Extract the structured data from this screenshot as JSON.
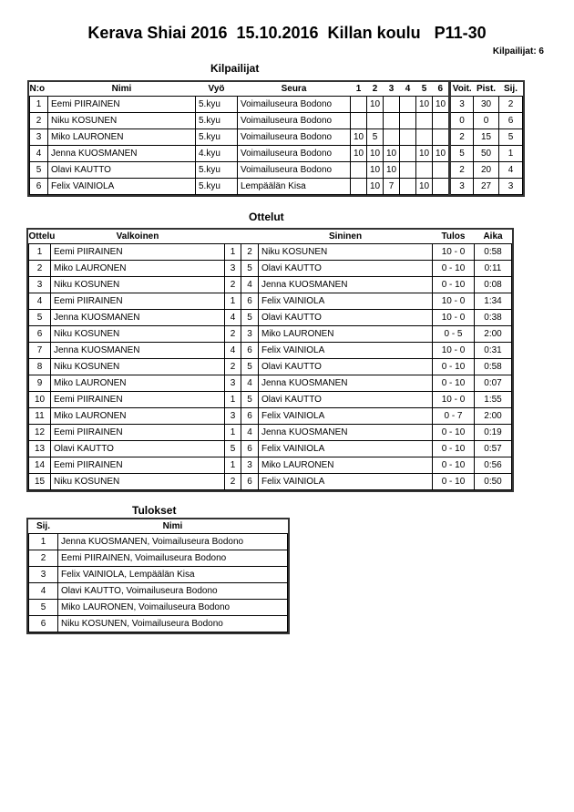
{
  "title": "Kerava Shiai 2016  15.10.2016  Killan koulu   P11-30",
  "competitor_count": "Kilpailijat: 6",
  "competitors": {
    "heading": "Kilpailijat",
    "headers": [
      "N:o",
      "Nimi",
      "Vyö",
      "Seura",
      "1",
      "2",
      "3",
      "4",
      "5",
      "6",
      "Voit.",
      "Pist.",
      "Sij."
    ],
    "rows": [
      [
        "1",
        "Eemi PIIRAINEN",
        "5.kyu",
        "Voimailuseura Bodono",
        "",
        "10",
        "",
        "",
        "10",
        "10",
        "3",
        "30",
        "2"
      ],
      [
        "2",
        "Niku KOSUNEN",
        "5.kyu",
        "Voimailuseura Bodono",
        "",
        "",
        "",
        "",
        "",
        "",
        "0",
        "0",
        "6"
      ],
      [
        "3",
        "Miko LAURONEN",
        "5.kyu",
        "Voimailuseura Bodono",
        "10",
        "5",
        "",
        "",
        "",
        "",
        "2",
        "15",
        "5"
      ],
      [
        "4",
        "Jenna KUOSMANEN",
        "4.kyu",
        "Voimailuseura Bodono",
        "10",
        "10",
        "10",
        "",
        "10",
        "10",
        "5",
        "50",
        "1"
      ],
      [
        "5",
        "Olavi KAUTTO",
        "5.kyu",
        "Voimailuseura Bodono",
        "",
        "10",
        "10",
        "",
        "",
        "",
        "2",
        "20",
        "4"
      ],
      [
        "6",
        "Felix VAINIOLA",
        "5.kyu",
        "Lempäälän Kisa",
        "",
        "10",
        "7",
        "",
        "10",
        "",
        "3",
        "27",
        "3"
      ]
    ]
  },
  "matches": {
    "heading": "Ottelut",
    "headers": [
      "Ottelu",
      "Valkoinen",
      "",
      "",
      "Sininen",
      "Tulos",
      "Aika"
    ],
    "rows": [
      [
        "1",
        "Eemi PIIRAINEN",
        "1",
        "2",
        "Niku KOSUNEN",
        "10 - 0",
        "0:58"
      ],
      [
        "2",
        "Miko LAURONEN",
        "3",
        "5",
        "Olavi KAUTTO",
        "0 - 10",
        "0:11"
      ],
      [
        "3",
        "Niku KOSUNEN",
        "2",
        "4",
        "Jenna KUOSMANEN",
        "0 - 10",
        "0:08"
      ],
      [
        "4",
        "Eemi PIIRAINEN",
        "1",
        "6",
        "Felix VAINIOLA",
        "10 - 0",
        "1:34"
      ],
      [
        "5",
        "Jenna KUOSMANEN",
        "4",
        "5",
        "Olavi KAUTTO",
        "10 - 0",
        "0:38"
      ],
      [
        "6",
        "Niku KOSUNEN",
        "2",
        "3",
        "Miko LAURONEN",
        "0 - 5",
        "2:00"
      ],
      [
        "7",
        "Jenna KUOSMANEN",
        "4",
        "6",
        "Felix VAINIOLA",
        "10 - 0",
        "0:31"
      ],
      [
        "8",
        "Niku KOSUNEN",
        "2",
        "5",
        "Olavi KAUTTO",
        "0 - 10",
        "0:58"
      ],
      [
        "9",
        "Miko LAURONEN",
        "3",
        "4",
        "Jenna KUOSMANEN",
        "0 - 10",
        "0:07"
      ],
      [
        "10",
        "Eemi PIIRAINEN",
        "1",
        "5",
        "Olavi KAUTTO",
        "10 - 0",
        "1:55"
      ],
      [
        "11",
        "Miko LAURONEN",
        "3",
        "6",
        "Felix VAINIOLA",
        "0 - 7",
        "2:00"
      ],
      [
        "12",
        "Eemi PIIRAINEN",
        "1",
        "4",
        "Jenna KUOSMANEN",
        "0 - 10",
        "0:19"
      ],
      [
        "13",
        "Olavi KAUTTO",
        "5",
        "6",
        "Felix VAINIOLA",
        "0 - 10",
        "0:57"
      ],
      [
        "14",
        "Eemi PIIRAINEN",
        "1",
        "3",
        "Miko LAURONEN",
        "0 - 10",
        "0:56"
      ],
      [
        "15",
        "Niku KOSUNEN",
        "2",
        "6",
        "Felix VAINIOLA",
        "0 - 10",
        "0:50"
      ]
    ]
  },
  "results": {
    "heading": "Tulokset",
    "headers": [
      "Sij.",
      "Nimi"
    ],
    "rows": [
      [
        "1",
        "Jenna KUOSMANEN, Voimailuseura Bodono"
      ],
      [
        "2",
        "Eemi PIIRAINEN, Voimailuseura Bodono"
      ],
      [
        "3",
        "Felix VAINIOLA, Lempäälän Kisa"
      ],
      [
        "4",
        "Olavi KAUTTO, Voimailuseura Bodono"
      ],
      [
        "5",
        "Miko LAURONEN, Voimailuseura Bodono"
      ],
      [
        "6",
        "Niku KOSUNEN, Voimailuseura Bodono"
      ]
    ]
  }
}
